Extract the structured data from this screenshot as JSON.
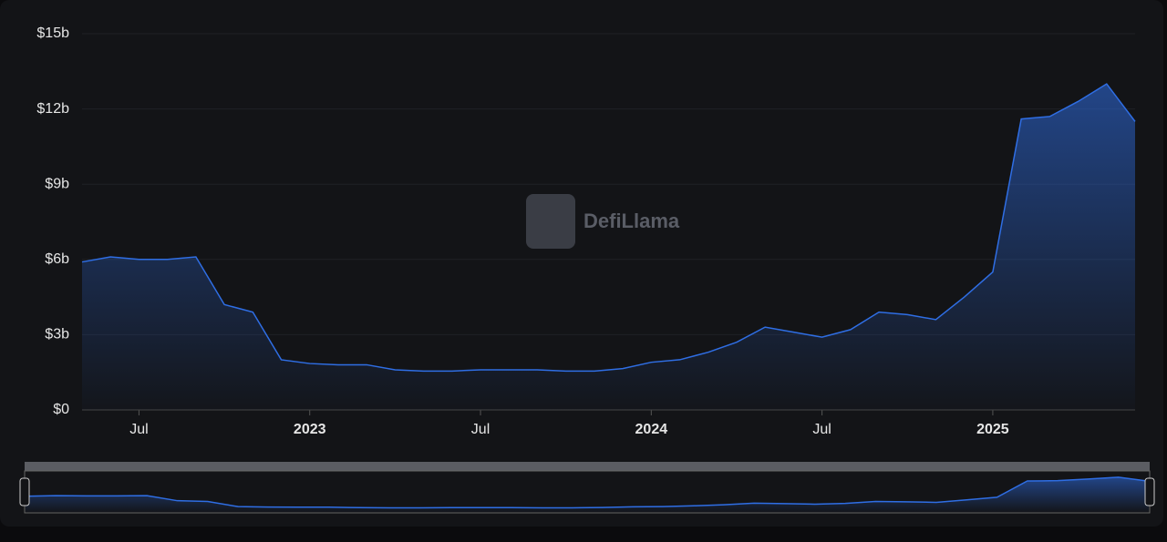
{
  "chart_data": {
    "type": "area",
    "watermark": "DefiLlama",
    "color": "#2f6ee4",
    "x": [
      "2022-05",
      "2022-06",
      "2022-07",
      "2022-08",
      "2022-09",
      "2022-10",
      "2022-11",
      "2022-12",
      "2023-01",
      "2023-02",
      "2023-03",
      "2023-04",
      "2023-05",
      "2023-06",
      "2023-07",
      "2023-08",
      "2023-09",
      "2023-10",
      "2023-11",
      "2023-12",
      "2024-01",
      "2024-02",
      "2024-03",
      "2024-04",
      "2024-05",
      "2024-06",
      "2024-07",
      "2024-08",
      "2024-09",
      "2024-10",
      "2024-11",
      "2024-12",
      "2025-01",
      "2025-02",
      "2025-03",
      "2025-04",
      "2025-05",
      "2025-06"
    ],
    "values": [
      5.9,
      6.1,
      6.0,
      6.0,
      6.1,
      4.2,
      3.9,
      2.0,
      1.85,
      1.8,
      1.8,
      1.6,
      1.55,
      1.55,
      1.6,
      1.6,
      1.6,
      1.55,
      1.55,
      1.65,
      1.9,
      2.0,
      2.3,
      2.7,
      3.3,
      3.1,
      2.9,
      3.2,
      3.9,
      3.8,
      3.6,
      4.5,
      5.5,
      11.6,
      11.7,
      12.3,
      13.0,
      11.5
    ],
    "xlim": [
      "2022-05",
      "2025-06"
    ],
    "xticks": [
      {
        "value": "2022-07",
        "label": "Jul"
      },
      {
        "value": "2023-01",
        "label": "2023"
      },
      {
        "value": "2023-07",
        "label": "Jul"
      },
      {
        "value": "2024-01",
        "label": "2024"
      },
      {
        "value": "2024-07",
        "label": "Jul"
      },
      {
        "value": "2025-01",
        "label": "2025"
      }
    ],
    "ylim": [
      0,
      15
    ],
    "yticks": [
      {
        "value": 0,
        "label": "$0"
      },
      {
        "value": 3,
        "label": "$3b"
      },
      {
        "value": 6,
        "label": "$6b"
      },
      {
        "value": 9,
        "label": "$9b"
      },
      {
        "value": 12,
        "label": "$12b"
      },
      {
        "value": 15,
        "label": "$15b"
      }
    ],
    "grid": true
  }
}
